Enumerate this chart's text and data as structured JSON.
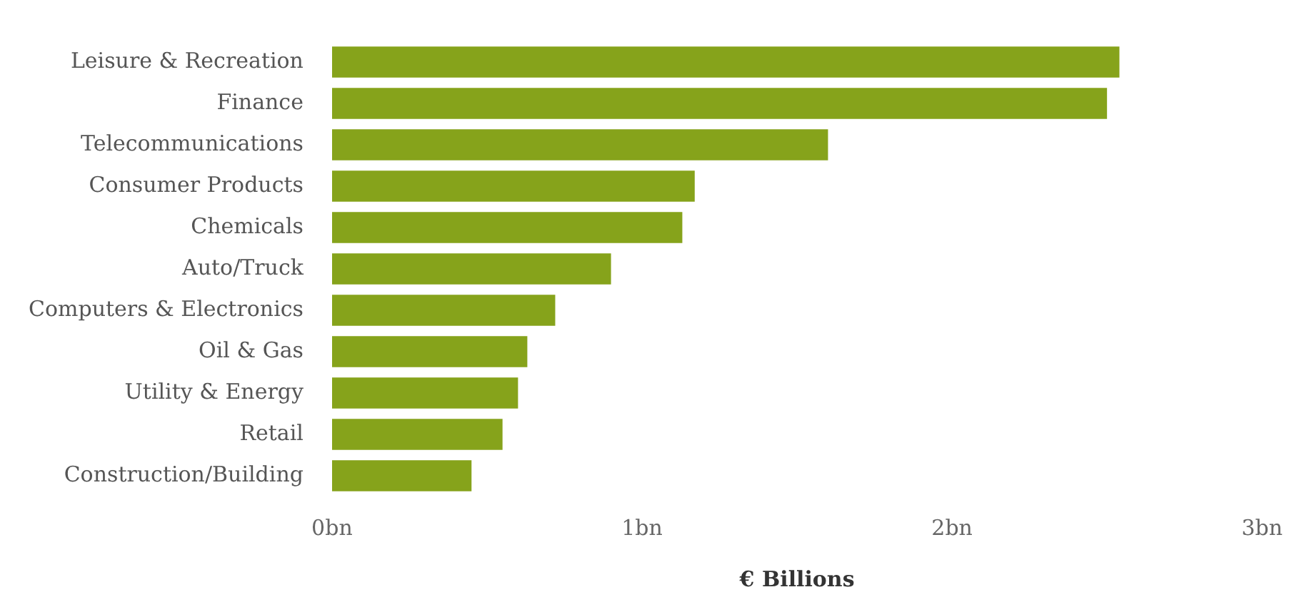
{
  "chart_data": {
    "type": "bar",
    "orientation": "horizontal",
    "xlabel": "€ Billions",
    "categories": [
      "Leisure & Recreation",
      "Finance",
      "Telecommunications",
      "Consumer Products",
      "Chemicals",
      "Auto/Truck",
      "Computers & Electronics",
      "Oil & Gas",
      "Utility & Energy",
      "Retail",
      "Construction/Building"
    ],
    "values": [
      2.54,
      2.5,
      1.6,
      1.17,
      1.13,
      0.9,
      0.72,
      0.63,
      0.6,
      0.55,
      0.45
    ],
    "color": "#86a31b",
    "xlim": [
      0,
      3
    ],
    "xticks": [
      {
        "value": 0,
        "label": "0bn"
      },
      {
        "value": 1,
        "label": "1bn"
      },
      {
        "value": 2,
        "label": "2bn"
      },
      {
        "value": 3,
        "label": "3bn"
      }
    ],
    "grid": false,
    "legend": false
  }
}
